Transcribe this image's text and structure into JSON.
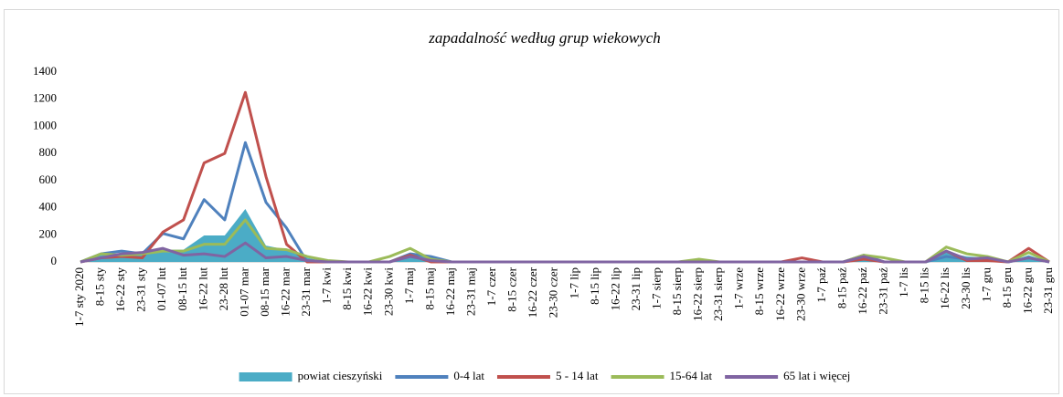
{
  "chart_data": {
    "type": "line",
    "title": "zapadalność według grup wiekowych",
    "categories": [
      "1-7 sty 2020",
      "8-15 sty",
      "16-22 sty",
      "23-31 sty",
      "01-07 lut",
      "08-15 lut",
      "16-22 lut",
      "23-28 lut",
      "01-07 mar",
      "08-15 mar",
      "16-22 mar",
      "23-31 mar",
      "1-7 kwi",
      "8-15 kwi",
      "16-22 kwi",
      "23-30 kwi",
      "1-7 maj",
      "8-15 maj",
      "16-22 maj",
      "23-31 maj",
      "1-7 czer",
      "8-15 czer",
      "16-22 czer",
      "23-30 czer",
      "1-7 lip",
      "8-15 lip",
      "16-22 lip",
      "23-31 lip",
      "1-7 sierp",
      "8-15 sierp",
      "16-22 sierp",
      "23-31 sierp",
      "1-7 wrze",
      "8-15 wrze",
      "16-22 wrze",
      "23-30 wrze",
      "1-7 paź",
      "8-15 paź",
      "16-22 paź",
      "23-31 paź",
      "1-7 lis",
      "8-15 lis",
      "16-22 lis",
      "23-30 lis",
      "1-7 gru",
      "8-15 gru",
      "16-22 gru",
      "23-31 gru"
    ],
    "series": [
      {
        "name": "powiat cieszyński",
        "color": "#4bacc6",
        "fill": true,
        "values": [
          0,
          50,
          60,
          60,
          90,
          90,
          195,
          195,
          390,
          120,
          90,
          30,
          0,
          0,
          0,
          0,
          60,
          30,
          0,
          0,
          0,
          0,
          0,
          0,
          0,
          0,
          0,
          0,
          0,
          0,
          0,
          0,
          0,
          0,
          0,
          0,
          0,
          0,
          40,
          0,
          0,
          0,
          70,
          40,
          30,
          0,
          50,
          0
        ]
      },
      {
        "name": "0-4 lat",
        "color": "#4f81bd",
        "values": [
          0,
          60,
          80,
          60,
          210,
          170,
          460,
          310,
          880,
          440,
          250,
          0,
          0,
          0,
          0,
          0,
          60,
          40,
          0,
          0,
          0,
          0,
          0,
          0,
          0,
          0,
          0,
          0,
          0,
          0,
          0,
          0,
          0,
          0,
          0,
          0,
          0,
          0,
          50,
          0,
          0,
          0,
          40,
          20,
          30,
          0,
          30,
          0
        ]
      },
      {
        "name": "5 - 14 lat",
        "color": "#c0504d",
        "values": [
          0,
          30,
          40,
          30,
          220,
          310,
          730,
          800,
          1250,
          630,
          130,
          0,
          0,
          0,
          0,
          0,
          50,
          0,
          0,
          0,
          0,
          0,
          0,
          0,
          0,
          0,
          0,
          0,
          0,
          0,
          0,
          0,
          0,
          0,
          0,
          30,
          0,
          0,
          20,
          0,
          0,
          0,
          80,
          10,
          10,
          0,
          100,
          0
        ]
      },
      {
        "name": "15-64 lat",
        "color": "#9bbb59",
        "values": [
          0,
          60,
          50,
          60,
          80,
          80,
          130,
          130,
          310,
          100,
          90,
          40,
          10,
          0,
          0,
          40,
          100,
          20,
          0,
          0,
          0,
          0,
          0,
          0,
          0,
          0,
          0,
          0,
          0,
          0,
          20,
          0,
          0,
          0,
          0,
          0,
          0,
          0,
          50,
          30,
          0,
          0,
          110,
          60,
          40,
          0,
          70,
          0
        ]
      },
      {
        "name": "65 lat i więcej",
        "color": "#8064a2",
        "values": [
          0,
          30,
          60,
          70,
          100,
          50,
          60,
          40,
          140,
          30,
          40,
          10,
          0,
          0,
          0,
          0,
          40,
          10,
          0,
          0,
          0,
          0,
          0,
          0,
          0,
          0,
          0,
          0,
          0,
          0,
          0,
          0,
          0,
          0,
          0,
          0,
          0,
          0,
          40,
          0,
          0,
          0,
          80,
          20,
          30,
          0,
          30,
          0
        ]
      }
    ],
    "ylim": [
      0,
      1400
    ],
    "yticks": [
      0,
      200,
      400,
      600,
      800,
      1000,
      1200,
      1400
    ],
    "legend": "bottom"
  }
}
